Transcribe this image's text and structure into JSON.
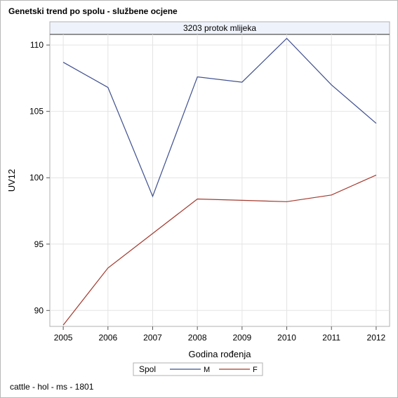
{
  "page": {
    "title": "Genetski trend po spolu - službene ocjene",
    "footnote": "cattle - hol - ms - 1801"
  },
  "chart_data": {
    "type": "line",
    "panel_title": "3203 protok mlijeka",
    "xlabel": "Godina rođenja",
    "ylabel": "UV12",
    "x": [
      2005,
      2006,
      2007,
      2008,
      2009,
      2010,
      2011,
      2012
    ],
    "x_ticks": [
      "2005",
      "2006",
      "2007",
      "2008",
      "2009",
      "2010",
      "2011",
      "2012"
    ],
    "y_ticks": [
      90,
      95,
      100,
      105,
      110
    ],
    "ylim": [
      88.8,
      110.8
    ],
    "xlim": [
      2004.7,
      2012.3
    ],
    "grid": true,
    "legend": {
      "title": "Spol",
      "placement": "bottom-center"
    },
    "series": [
      {
        "name": "M",
        "color": "#3e4f8f",
        "values": [
          108.7,
          106.8,
          98.6,
          107.6,
          107.2,
          110.5,
          107.0,
          104.1
        ]
      },
      {
        "name": "F",
        "color": "#a33a2e",
        "values": [
          88.9,
          93.2,
          95.8,
          98.4,
          98.3,
          98.2,
          98.7,
          100.2
        ]
      }
    ]
  }
}
